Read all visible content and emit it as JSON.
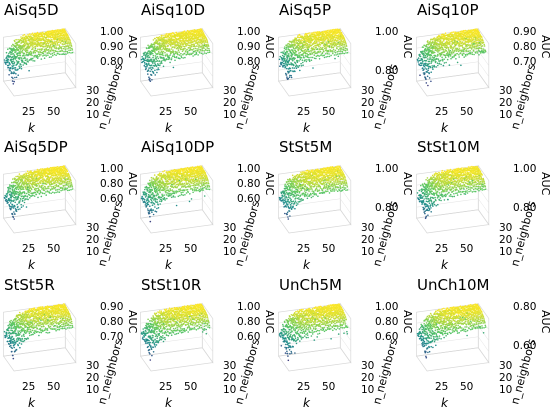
{
  "figure": {
    "panels": [
      {
        "title": "AiSq5D",
        "zlabel": "AUC",
        "zticks": [
          "1.00",
          "0.90",
          "0.80"
        ],
        "xlabel": "k",
        "xticks": [
          "25",
          "50"
        ],
        "ylabel": "n_neighbors",
        "yticks": [
          "30",
          "20",
          "10"
        ],
        "z_range": [
          0.72,
          1.0
        ]
      },
      {
        "title": "AiSq10D",
        "zlabel": "AUC",
        "zticks": [
          "1.00",
          "0.90",
          "0.80"
        ],
        "xlabel": "k",
        "xticks": [
          "25",
          "50"
        ],
        "ylabel": "n_neighbors",
        "yticks": [
          "30",
          "20",
          "10"
        ],
        "z_range": [
          0.72,
          1.0
        ]
      },
      {
        "title": "AiSq5P",
        "zlabel": "AUC",
        "zticks": [
          "1.00",
          "0.80"
        ],
        "xlabel": "k",
        "xticks": [
          "25",
          "50"
        ],
        "ylabel": "n_neighbors",
        "yticks": [
          "30",
          "20",
          "10"
        ],
        "z_range": [
          0.7,
          1.0
        ]
      },
      {
        "title": "AiSq10P",
        "zlabel": "AUC",
        "zticks": [
          "0.90",
          "0.80",
          "0.70"
        ],
        "xlabel": "k",
        "xticks": [
          "25",
          "50"
        ],
        "ylabel": "n_neighbors",
        "yticks": [
          "30",
          "20",
          "10"
        ],
        "z_range": [
          0.65,
          0.97
        ]
      },
      {
        "title": "AiSq5DP",
        "zlabel": "AUC",
        "zticks": [
          "1.00",
          "0.80",
          "0.60"
        ],
        "xlabel": "k",
        "xticks": [
          "25",
          "50"
        ],
        "ylabel": "n_neighbors",
        "yticks": [
          "30",
          "20",
          "10"
        ],
        "z_range": [
          0.55,
          1.0
        ]
      },
      {
        "title": "AiSq10DP",
        "zlabel": "AUC",
        "zticks": [
          "1.00",
          "0.80",
          "0.60"
        ],
        "xlabel": "k",
        "xticks": [
          "25",
          "50"
        ],
        "ylabel": "n_neighbors",
        "yticks": [
          "30",
          "20",
          "10"
        ],
        "z_range": [
          0.55,
          1.0
        ]
      },
      {
        "title": "StSt5M",
        "zlabel": "AUC",
        "zticks": [
          "1.00",
          "0.80"
        ],
        "xlabel": "k",
        "xticks": [
          "25",
          "50"
        ],
        "ylabel": "n_neighbors",
        "yticks": [
          "30",
          "20",
          "10"
        ],
        "z_range": [
          0.7,
          1.0
        ]
      },
      {
        "title": "StSt10M",
        "zlabel": "AUC",
        "zticks": [
          "1.00",
          "0.80"
        ],
        "xlabel": "k",
        "xticks": [
          "25",
          "50"
        ],
        "ylabel": "n_neighbors",
        "yticks": [
          "30",
          "20",
          "10"
        ],
        "z_range": [
          0.7,
          1.0
        ]
      },
      {
        "title": "StSt5R",
        "zlabel": "AUC",
        "zticks": [
          "0.90",
          "0.80",
          "0.70"
        ],
        "xlabel": "k",
        "xticks": [
          "25",
          "50"
        ],
        "ylabel": "n_neighbors",
        "yticks": [
          "30",
          "20",
          "10"
        ],
        "z_range": [
          0.65,
          0.97
        ]
      },
      {
        "title": "StSt10R",
        "zlabel": "AUC",
        "zticks": [
          "1.00",
          "0.80",
          "0.60"
        ],
        "xlabel": "k",
        "xticks": [
          "25",
          "50"
        ],
        "ylabel": "n_neighbors",
        "yticks": [
          "30",
          "20",
          "10"
        ],
        "z_range": [
          0.55,
          1.0
        ]
      },
      {
        "title": "UnCh5M",
        "zlabel": "AUC",
        "zticks": [
          "1.00",
          "0.80",
          "0.60"
        ],
        "xlabel": "k",
        "xticks": [
          "25",
          "50"
        ],
        "ylabel": "n_neighbors",
        "yticks": [
          "30",
          "20",
          "10"
        ],
        "z_range": [
          0.5,
          1.0
        ]
      },
      {
        "title": "UnCh10M",
        "zlabel": "AUC",
        "zticks": [
          "0.80",
          "0.60"
        ],
        "xlabel": "k",
        "xticks": [
          "25",
          "50"
        ],
        "ylabel": "n_neighbors",
        "yticks": [
          "30",
          "20",
          "10"
        ],
        "z_range": [
          0.5,
          0.92
        ]
      }
    ],
    "colormap": [
      "#440154",
      "#3b528b",
      "#21918c",
      "#5ec962",
      "#fde725"
    ]
  },
  "chart_data": {
    "type": "scatter",
    "plot_kind": "3d-scatter",
    "x_axis": {
      "label": "k",
      "ticks": [
        25,
        50
      ],
      "range": [
        1,
        60
      ]
    },
    "y_axis": {
      "label": "n_neighbors",
      "ticks": [
        10,
        20,
        30
      ],
      "range": [
        5,
        30
      ]
    },
    "z_axis": {
      "label": "AUC"
    },
    "color_encodes": "AUC (viridis)",
    "panels": [
      "AiSq5D",
      "AiSq10D",
      "AiSq5P",
      "AiSq10P",
      "AiSq5DP",
      "AiSq10DP",
      "StSt5M",
      "StSt10M",
      "StSt5R",
      "StSt10R",
      "UnCh5M",
      "UnCh10M"
    ],
    "grid": true
  }
}
